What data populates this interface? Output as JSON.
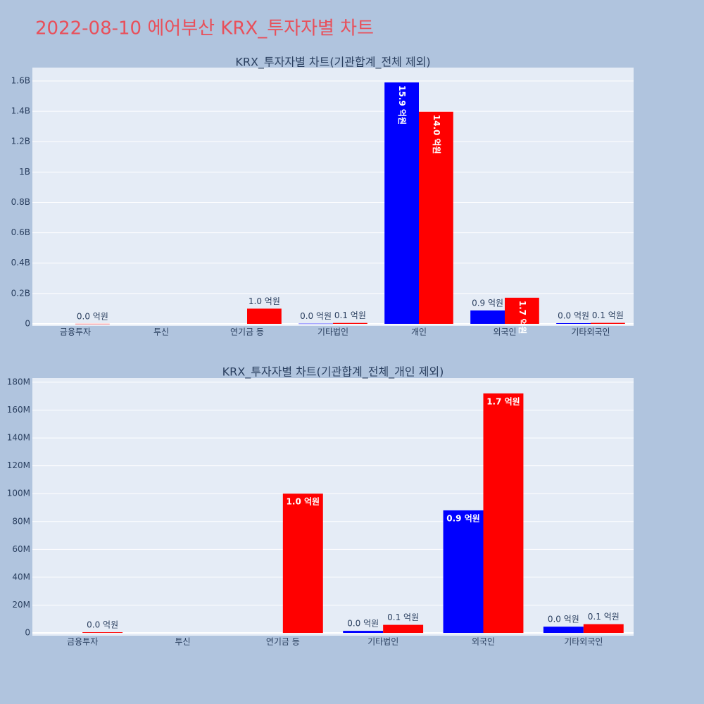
{
  "title": "2022-08-10 에어부산 KRX_투자자별 차트",
  "chart_data": [
    {
      "type": "bar",
      "title": "KRX_투자자별 차트(기관합계_전체 제외)",
      "categories": [
        "금융투자",
        "투신",
        "연기금 등",
        "기타법인",
        "개인",
        "외국인",
        "기타외국인"
      ],
      "series": [
        {
          "color": "#0000ff",
          "values": [
            null,
            null,
            null,
            1500000,
            1590000000,
            88000000,
            4500000
          ],
          "value_labels": [
            null,
            null,
            null,
            "0.0 억원",
            "15.9 억원",
            "0.9 억원",
            "0.0 억원"
          ]
        },
        {
          "color": "#ff0000",
          "values": [
            500000,
            null,
            100000000,
            5800000,
            1397000000,
            172000000,
            6300000
          ],
          "value_labels": [
            "0.0 억원",
            null,
            "1.0 억원",
            "0.1 억원",
            "14.0 억원",
            "1.7 억원",
            "0.1 억원"
          ]
        }
      ],
      "ylim": [
        -14000000,
        1688000000
      ],
      "yticks": [
        0,
        {
          "value": 200000000,
          "label": "0.2B"
        },
        {
          "value": 400000000,
          "label": "0.4B"
        },
        {
          "value": 600000000,
          "label": "0.6B"
        },
        {
          "value": 800000000,
          "label": "0.8B"
        },
        {
          "value": 1000000000,
          "label": "1B"
        },
        {
          "value": 1200000000,
          "label": "1.2B"
        },
        {
          "value": 1400000000,
          "label": "1.4B"
        },
        {
          "value": 1600000000,
          "label": "1.6B"
        }
      ],
      "grid": true
    },
    {
      "type": "bar",
      "title": "KRX_투자자별 차트(기관합계_전체_개인 제외)",
      "categories": [
        "금융투자",
        "투신",
        "연기금 등",
        "기타법인",
        "외국인",
        "기타외국인"
      ],
      "series": [
        {
          "color": "#0000ff",
          "values": [
            null,
            null,
            null,
            1500000,
            88000000,
            4500000
          ],
          "value_labels": [
            null,
            null,
            null,
            "0.0 억원",
            "0.9 억원",
            "0.0 억원"
          ]
        },
        {
          "color": "#ff0000",
          "values": [
            500000,
            null,
            100000000,
            5800000,
            172000000,
            6300000
          ],
          "value_labels": [
            "0.0 억원",
            null,
            "1.0 억원",
            "0.1 억원",
            "1.7 억원",
            "0.1 억원"
          ]
        }
      ],
      "ylim": [
        -2000000,
        183000000
      ],
      "yticks": [
        0,
        {
          "value": 20000000,
          "label": "20M"
        },
        {
          "value": 40000000,
          "label": "40M"
        },
        {
          "value": 60000000,
          "label": "60M"
        },
        {
          "value": 80000000,
          "label": "80M"
        },
        {
          "value": 100000000,
          "label": "100M"
        },
        {
          "value": 120000000,
          "label": "120M"
        },
        {
          "value": 140000000,
          "label": "140M"
        },
        {
          "value": 160000000,
          "label": "160M"
        },
        {
          "value": 180000000,
          "label": "180M"
        }
      ],
      "grid": true
    }
  ]
}
